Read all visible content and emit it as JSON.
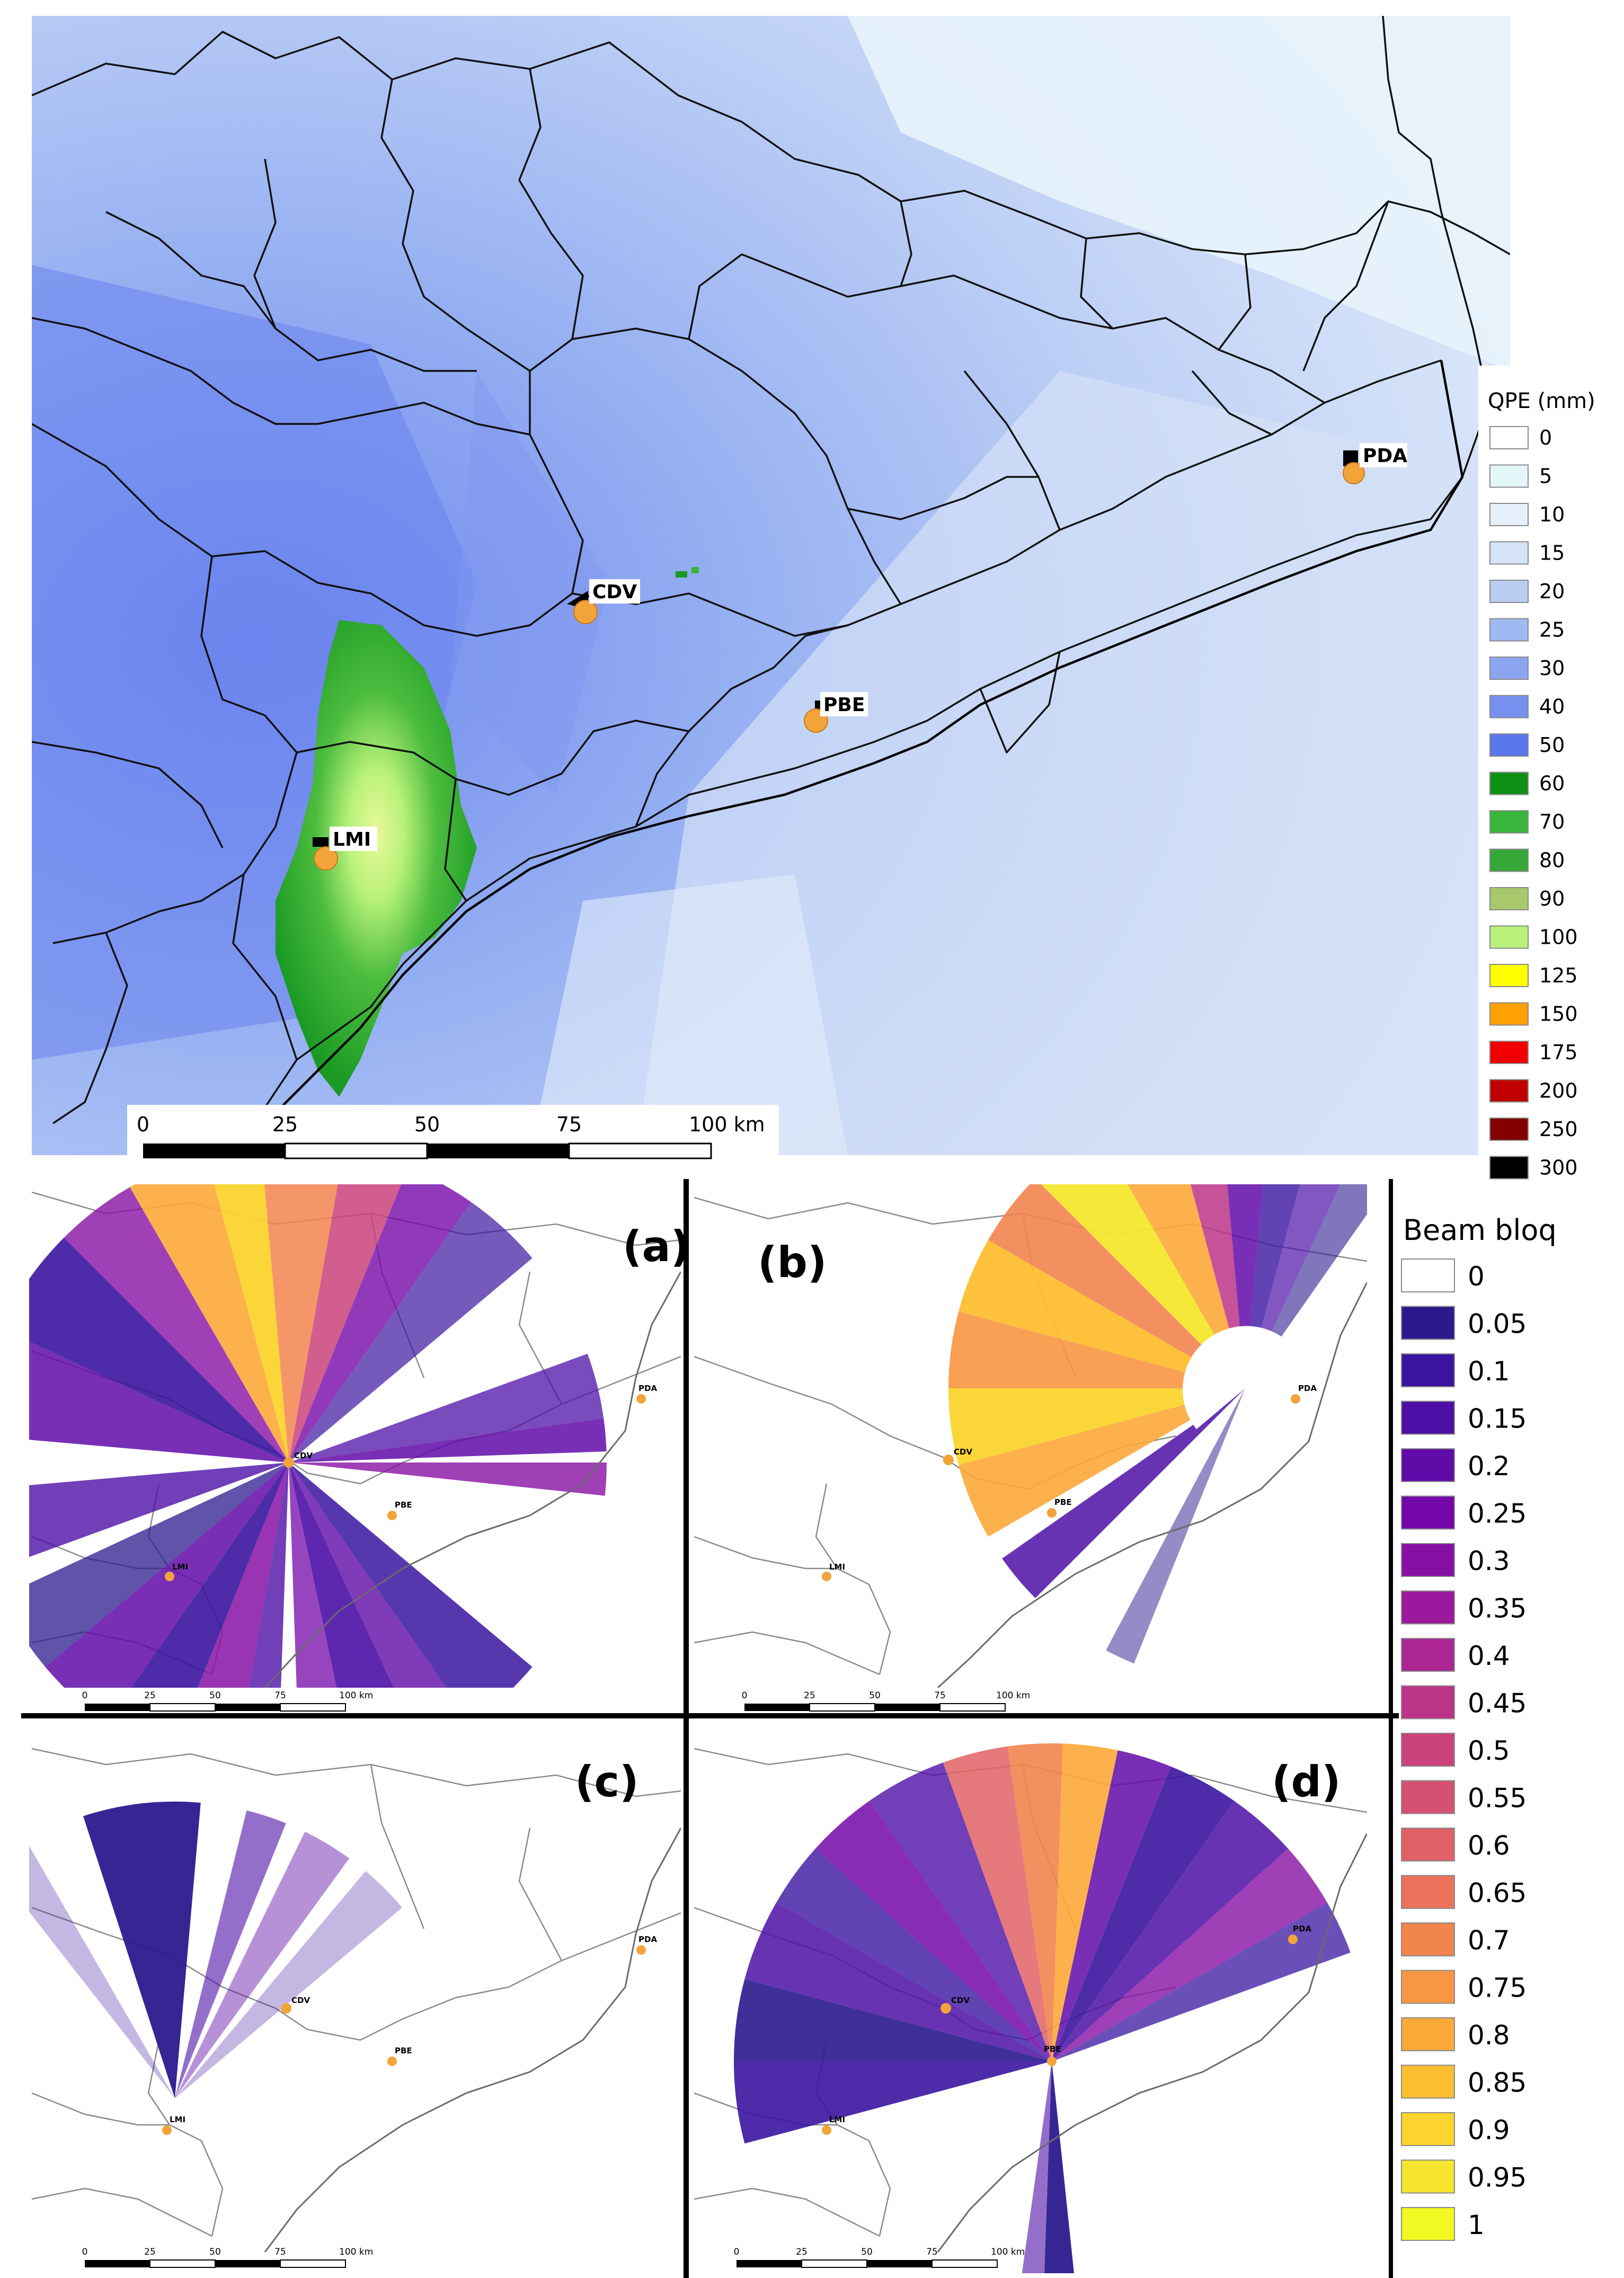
{
  "main_map": {
    "stations": [
      {
        "label": "PDA"
      },
      {
        "label": "CDV"
      },
      {
        "label": "PBE"
      },
      {
        "label": "LMI"
      }
    ],
    "scalebar": {
      "ticks": [
        "0",
        "25",
        "50",
        "75",
        "100 km"
      ]
    },
    "legend": {
      "title": "QPE (mm)",
      "items": [
        {
          "label": "0",
          "color": "#ffffff"
        },
        {
          "label": "5",
          "color": "#e3f7f9"
        },
        {
          "label": "10",
          "color": "#e6f0fb"
        },
        {
          "label": "15",
          "color": "#d6e4f7"
        },
        {
          "label": "20",
          "color": "#b9cdf3"
        },
        {
          "label": "25",
          "color": "#9fb9f3"
        },
        {
          "label": "30",
          "color": "#8ba5f1"
        },
        {
          "label": "40",
          "color": "#7590ee"
        },
        {
          "label": "50",
          "color": "#5b77ee"
        },
        {
          "label": "60",
          "color": "#0d8f16"
        },
        {
          "label": "70",
          "color": "#39b53b"
        },
        {
          "label": "80",
          "color": "#35a838"
        },
        {
          "label": "90",
          "color": "#a7c96c"
        },
        {
          "label": "100",
          "color": "#b8f27a"
        },
        {
          "label": "125",
          "color": "#ffff00"
        },
        {
          "label": "150",
          "color": "#ffa000"
        },
        {
          "label": "175",
          "color": "#f00000"
        },
        {
          "label": "200",
          "color": "#c00000"
        },
        {
          "label": "250",
          "color": "#820000"
        },
        {
          "label": "300",
          "color": "#000000"
        }
      ]
    }
  },
  "panels": [
    {
      "tag": "(a)",
      "stations": [
        "PDA",
        "CDV",
        "PBE",
        "LMI"
      ],
      "scalebar": [
        "0",
        "25",
        "50",
        "75",
        "100 km"
      ]
    },
    {
      "tag": "(b)",
      "stations": [
        "PDA",
        "CDV",
        "PBE",
        "LMI"
      ],
      "scalebar": [
        "0",
        "25",
        "50",
        "75",
        "100 km"
      ]
    },
    {
      "tag": "(c)",
      "stations": [
        "PDA",
        "CDV",
        "PBE",
        "LMI"
      ],
      "scalebar": [
        "0",
        "25",
        "50",
        "75",
        "100 km"
      ]
    },
    {
      "tag": "(d)",
      "stations": [
        "PDA",
        "CDV",
        "PBE",
        "LMI"
      ],
      "scalebar": [
        "0",
        "25",
        "50",
        "75",
        "100 km"
      ]
    }
  ],
  "beam_legend": {
    "title": "Beam bloq",
    "items": [
      {
        "label": "0",
        "color": "#ffffff"
      },
      {
        "label": "0.05",
        "color": "#2a1a8e"
      },
      {
        "label": "0.1",
        "color": "#3a14a0"
      },
      {
        "label": "0.15",
        "color": "#4d0fa6"
      },
      {
        "label": "0.2",
        "color": "#600aa8"
      },
      {
        "label": "0.25",
        "color": "#7407a8"
      },
      {
        "label": "0.3",
        "color": "#8710a4"
      },
      {
        "label": "0.35",
        "color": "#9a199c"
      },
      {
        "label": "0.4",
        "color": "#ac2693"
      },
      {
        "label": "0.45",
        "color": "#bc3488"
      },
      {
        "label": "0.5",
        "color": "#ca427c"
      },
      {
        "label": "0.55",
        "color": "#d65171"
      },
      {
        "label": "0.6",
        "color": "#e06165"
      },
      {
        "label": "0.65",
        "color": "#ea725a"
      },
      {
        "label": "0.7",
        "color": "#f2844e"
      },
      {
        "label": "0.75",
        "color": "#f89643"
      },
      {
        "label": "0.8",
        "color": "#fca93a"
      },
      {
        "label": "0.85",
        "color": "#fdbe32"
      },
      {
        "label": "0.9",
        "color": "#fbd42d"
      },
      {
        "label": "0.95",
        "color": "#f6e72e"
      },
      {
        "label": "1",
        "color": "#f0f921"
      }
    ]
  }
}
